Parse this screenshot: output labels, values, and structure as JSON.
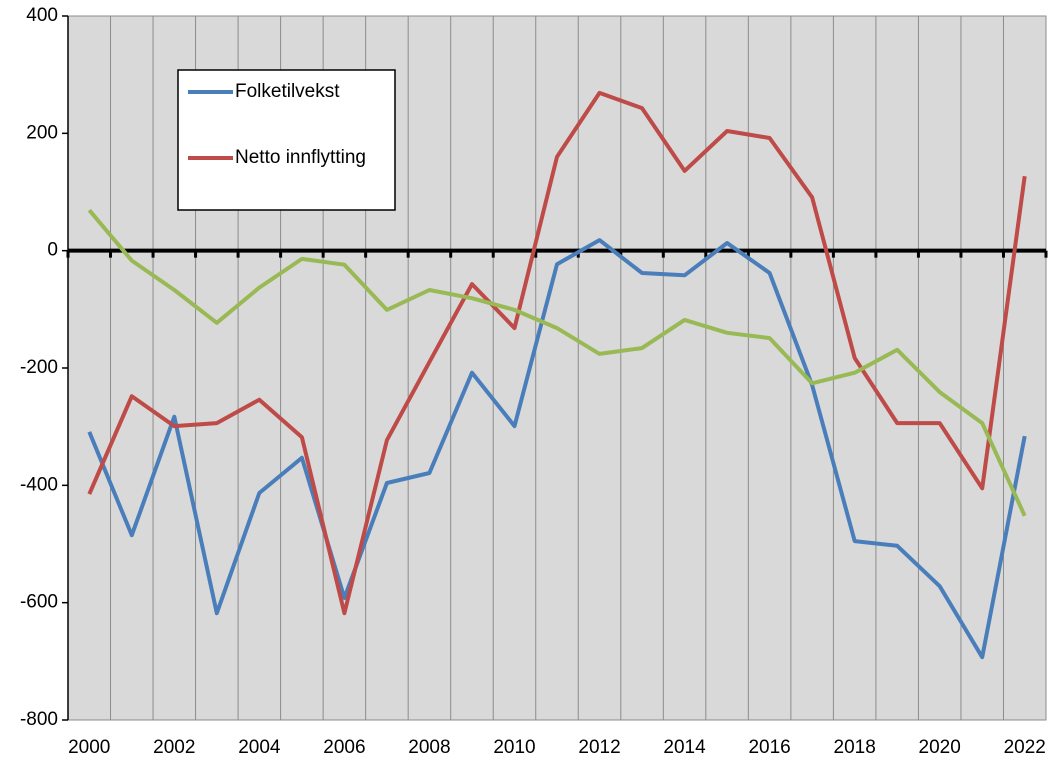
{
  "chart_data": {
    "type": "line",
    "categories": [
      "2000",
      null,
      "2002",
      null,
      "2004",
      null,
      "2006",
      null,
      "2008",
      null,
      "2010",
      null,
      "2012",
      null,
      "2014",
      null,
      "2016",
      null,
      "2018",
      null,
      "2020",
      null,
      "2022"
    ],
    "series": [
      {
        "name": "Folketilvekst",
        "color": "#4a7ebb",
        "values": [
          -309,
          -485,
          -283,
          -618,
          -413,
          -353,
          -592,
          -396,
          -379,
          -208,
          -299,
          -23,
          18,
          -38,
          -42,
          13,
          -38,
          -229,
          -495,
          -503,
          -572,
          -693,
          -316
        ]
      },
      {
        "name": "Netto innflytting",
        "color": "#be4b48",
        "values": [
          -415,
          -248,
          -299,
          -294,
          -254,
          -318,
          -618,
          -323,
          -190,
          -57,
          -132,
          160,
          269,
          243,
          136,
          204,
          192,
          91,
          -183,
          -294,
          -294,
          -405,
          127
        ]
      },
      {
        "color": "#98b954",
        "values": [
          69,
          -17,
          -67,
          -123,
          -63,
          -14,
          -24,
          -101,
          -67,
          -81,
          -101,
          -132,
          -176,
          -166,
          -118,
          -140,
          -149,
          -226,
          -208,
          -169,
          -241,
          -294,
          -452
        ]
      }
    ],
    "ylim": [
      -800,
      400
    ],
    "yticks": [
      -800,
      -600,
      -400,
      -200,
      0,
      200,
      400
    ],
    "legend": "upper left"
  }
}
